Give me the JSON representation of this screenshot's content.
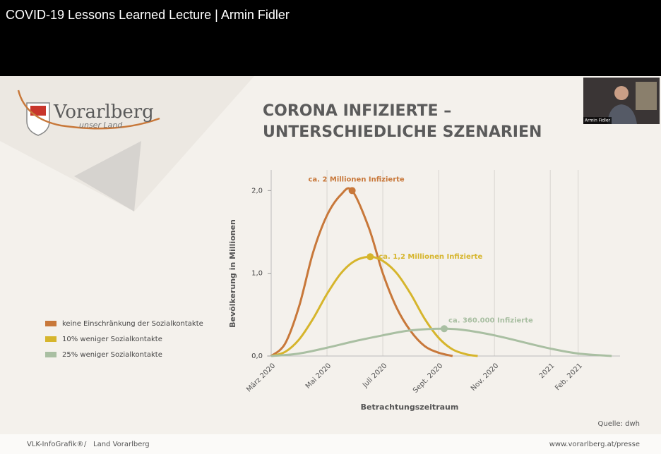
{
  "header": {
    "title": "COVID-19 Lessons Learned Lecture | Armin Fidler"
  },
  "webcam": {
    "name": "Armin Fidler"
  },
  "logo": {
    "name": "Vorarlberg",
    "tagline": "unser Land"
  },
  "slide": {
    "title_lines": [
      "CORONA INFIZIERTE –",
      "UNTERSCHIEDLICHE SZENARIEN"
    ],
    "source": "Quelle: dwh"
  },
  "chart_data": {
    "type": "line",
    "y_label": "Bevölkerung in Millionen",
    "x_label": "Betrachtungszeitraum",
    "xlim": [
      0,
      12.5
    ],
    "xticks": [
      {
        "value": 0,
        "label": "März 2020"
      },
      {
        "value": 2,
        "label": "Mai 2020"
      },
      {
        "value": 4,
        "label": "Juli 2020"
      },
      {
        "value": 6,
        "label": "Sept. 2020"
      },
      {
        "value": 8,
        "label": "Nov. 2020"
      },
      {
        "value": 10,
        "label": "2021"
      },
      {
        "value": 11,
        "label": "Feb. 2021"
      }
    ],
    "ylim": [
      0,
      2.25
    ],
    "yticks": [
      {
        "value": 0,
        "label": "0,0"
      },
      {
        "value": 1,
        "label": "1,0"
      },
      {
        "value": 2,
        "label": "2,0"
      }
    ],
    "grid": true,
    "series": [
      {
        "name": "keine Einschränkung der Sozialkontakte",
        "color": "#c8783a",
        "x": [
          0,
          0.5,
          1,
          1.5,
          2,
          2.5,
          2.9,
          3.5,
          4,
          4.5,
          5,
          5.5,
          6,
          6.5
        ],
        "values": [
          0,
          0.15,
          0.6,
          1.25,
          1.7,
          1.95,
          2.0,
          1.55,
          1.0,
          0.58,
          0.3,
          0.12,
          0.04,
          0
        ]
      },
      {
        "name": "10% weniger Sozialkontakte",
        "color": "#d6b52c",
        "x": [
          0,
          0.5,
          1,
          1.5,
          2,
          2.5,
          3,
          3.55,
          4,
          4.5,
          5,
          5.5,
          6,
          6.5,
          7,
          7.4
        ],
        "values": [
          0,
          0.05,
          0.2,
          0.45,
          0.75,
          1.0,
          1.15,
          1.2,
          1.15,
          1.0,
          0.75,
          0.45,
          0.22,
          0.08,
          0.02,
          0
        ]
      },
      {
        "name": "25% weniger Sozialkontakte",
        "color": "#a9bfa2",
        "x": [
          0,
          1,
          2,
          3,
          4,
          5,
          6.2,
          7,
          8,
          9,
          10,
          11,
          12.2
        ],
        "values": [
          0,
          0.03,
          0.1,
          0.18,
          0.25,
          0.31,
          0.33,
          0.31,
          0.25,
          0.17,
          0.09,
          0.03,
          0
        ]
      }
    ],
    "annotations": [
      "ca. 2 Millionen Infizierte",
      "ca. 1,2 Millionen Infizierte",
      "ca. 360.000 Infizierte"
    ]
  },
  "footer": {
    "left": "VLK-InfoGrafik®",
    "separator": "/",
    "middle": "Land Vorarlberg",
    "right": "www.vorarlberg.at/presse"
  }
}
